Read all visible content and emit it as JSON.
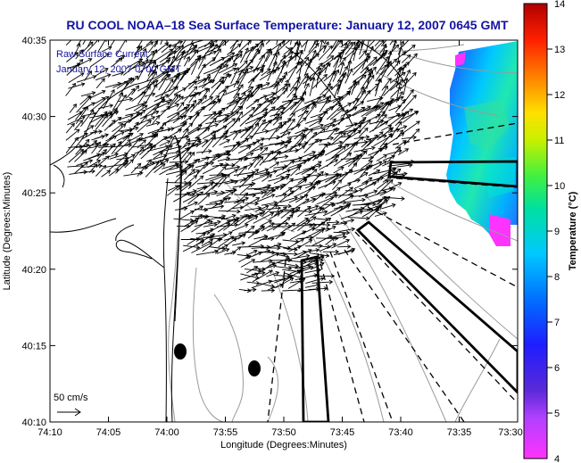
{
  "title": "RU COOL  NOAA–18  Sea Surface Temperature:  January 12, 2007 0645 GMT",
  "legend": {
    "line1": "Raw Surface Current",
    "line2": "January 12, 2007 0700 GMT"
  },
  "scale_label": "50 cm/s",
  "x_axis": {
    "label": "Longitude (Degrees:Minutes)",
    "ticks": [
      "74:10",
      "74:05",
      "74:00",
      "73:55",
      "73:50",
      "73:45",
      "73:40",
      "73:35",
      "73:30"
    ]
  },
  "y_axis": {
    "label": "Latitude (Degrees:Minutes)",
    "ticks": [
      "40:35",
      "40:30",
      "40:25",
      "40:20",
      "40:15",
      "40:10"
    ]
  },
  "colorbar": {
    "label": "Temperature (°C)",
    "ticks": [
      "14",
      "13",
      "12",
      "11",
      "10",
      "9",
      "8",
      "7",
      "6",
      "5",
      "4"
    ],
    "min": 4,
    "max": 14
  },
  "colors": {
    "title": "#1414a0",
    "legend_text": "#1414a0",
    "vectors": "#000000",
    "coast": "#000000",
    "bathymetry": "#9a9a9a"
  }
}
